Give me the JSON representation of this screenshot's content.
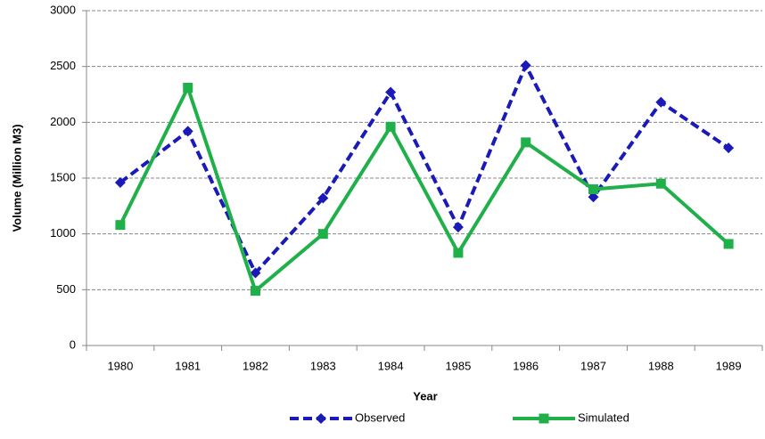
{
  "chart_data": {
    "type": "line",
    "x_label": "Year",
    "y_label": "Volume (Million M3)",
    "categories": [
      "1980",
      "1981",
      "1982",
      "1983",
      "1984",
      "1985",
      "1986",
      "1987",
      "1988",
      "1989"
    ],
    "series": [
      {
        "name": "Observed",
        "color": "#1a1ab8",
        "dashed": true,
        "marker": "diamond",
        "values": [
          1460,
          1920,
          650,
          1320,
          2270,
          1060,
          2510,
          1330,
          2180,
          1770
        ]
      },
      {
        "name": "Simulated",
        "color": "#1fb04a",
        "dashed": false,
        "marker": "square",
        "values": [
          1080,
          2310,
          490,
          1000,
          1960,
          830,
          1820,
          1400,
          1450,
          910
        ]
      }
    ],
    "ylim": [
      0,
      3000
    ],
    "yticks": [
      0,
      500,
      1000,
      1500,
      2000,
      2500,
      3000
    ],
    "grid": true,
    "legend": "bottom"
  }
}
